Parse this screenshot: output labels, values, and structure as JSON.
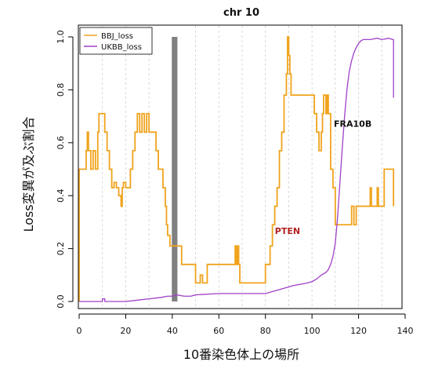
{
  "chart_data": {
    "type": "line",
    "title": "chr 10",
    "xlabel": "10番染色体上の場所",
    "ylabel": "Loss変異が及ぶ割合",
    "xlim": [
      0,
      140
    ],
    "ylim": [
      0,
      1
    ],
    "x_ticks": [
      0,
      20,
      40,
      60,
      80,
      100,
      120,
      140
    ],
    "y_ticks": [
      0.0,
      0.2,
      0.4,
      0.6,
      0.8,
      1.0
    ],
    "x_tick_labels": [
      "0",
      "20",
      "40",
      "60",
      "80",
      "100",
      "120",
      "140"
    ],
    "y_tick_labels": [
      "0.0",
      "0.2",
      "0.4",
      "0.6",
      "0.8",
      "1.0"
    ],
    "vertical_guides": [
      10,
      20,
      30,
      50,
      60,
      70,
      80,
      90,
      100,
      110,
      120,
      130
    ],
    "highlight_band": {
      "x0": 39.8,
      "x1": 42.2
    },
    "legend": {
      "placement": "top-left",
      "entries": [
        "BBJ_loss",
        "UKBB_loss"
      ]
    },
    "annotations": [
      {
        "text": "PTEN",
        "x": 89.5,
        "y": 0.255,
        "color": "#b22222"
      },
      {
        "text": "FRA10B",
        "x": 117.5,
        "y": 0.66,
        "color": "#111111"
      }
    ],
    "series": [
      {
        "name": "BBJ_loss",
        "color": "#f0a31c",
        "step": true,
        "points": [
          [
            0,
            0
          ],
          [
            0,
            0.5
          ],
          [
            3,
            0.5
          ],
          [
            3,
            0.57
          ],
          [
            3.5,
            0.57
          ],
          [
            3.5,
            0.64
          ],
          [
            4,
            0.64
          ],
          [
            4,
            0.57
          ],
          [
            5,
            0.57
          ],
          [
            5,
            0.5
          ],
          [
            6,
            0.5
          ],
          [
            6,
            0.57
          ],
          [
            7,
            0.57
          ],
          [
            7,
            0.5
          ],
          [
            8,
            0.5
          ],
          [
            8,
            0.64
          ],
          [
            8.5,
            0.64
          ],
          [
            8.5,
            0.71
          ],
          [
            11,
            0.71
          ],
          [
            11,
            0.64
          ],
          [
            12,
            0.64
          ],
          [
            12,
            0.57
          ],
          [
            13,
            0.57
          ],
          [
            13,
            0.5
          ],
          [
            14,
            0.5
          ],
          [
            14,
            0.43
          ],
          [
            15,
            0.43
          ],
          [
            15,
            0.45
          ],
          [
            16,
            0.45
          ],
          [
            16,
            0.43
          ],
          [
            17,
            0.43
          ],
          [
            17,
            0.4
          ],
          [
            18,
            0.4
          ],
          [
            18,
            0.36
          ],
          [
            18.5,
            0.36
          ],
          [
            18.5,
            0.43
          ],
          [
            19,
            0.43
          ],
          [
            19,
            0.45
          ],
          [
            20,
            0.45
          ],
          [
            20,
            0.43
          ],
          [
            22,
            0.43
          ],
          [
            22,
            0.5
          ],
          [
            23,
            0.5
          ],
          [
            23,
            0.57
          ],
          [
            24,
            0.57
          ],
          [
            24,
            0.64
          ],
          [
            25,
            0.64
          ],
          [
            25,
            0.71
          ],
          [
            26,
            0.71
          ],
          [
            26,
            0.64
          ],
          [
            27,
            0.64
          ],
          [
            27,
            0.71
          ],
          [
            28,
            0.71
          ],
          [
            28,
            0.64
          ],
          [
            29,
            0.64
          ],
          [
            29,
            0.71
          ],
          [
            30,
            0.71
          ],
          [
            30,
            0.64
          ],
          [
            33,
            0.64
          ],
          [
            33,
            0.57
          ],
          [
            34,
            0.57
          ],
          [
            34,
            0.5
          ],
          [
            36,
            0.5
          ],
          [
            36,
            0.43
          ],
          [
            37,
            0.43
          ],
          [
            37,
            0.36
          ],
          [
            37.5,
            0.36
          ],
          [
            37.5,
            0.29
          ],
          [
            38,
            0.29
          ],
          [
            38,
            0.25
          ],
          [
            39,
            0.25
          ],
          [
            39,
            0.21
          ],
          [
            44,
            0.21
          ],
          [
            44,
            0.14
          ],
          [
            50,
            0.14
          ],
          [
            50,
            0.07
          ],
          [
            52,
            0.07
          ],
          [
            52,
            0.1
          ],
          [
            53,
            0.1
          ],
          [
            53,
            0.07
          ],
          [
            55,
            0.07
          ],
          [
            55,
            0.14
          ],
          [
            67,
            0.14
          ],
          [
            67,
            0.21
          ],
          [
            67.5,
            0.21
          ],
          [
            67.5,
            0.14
          ],
          [
            68,
            0.14
          ],
          [
            68,
            0.21
          ],
          [
            68.5,
            0.21
          ],
          [
            68.5,
            0.14
          ],
          [
            69,
            0.14
          ],
          [
            69,
            0.07
          ],
          [
            80,
            0.07
          ],
          [
            80,
            0.14
          ],
          [
            82,
            0.14
          ],
          [
            82,
            0.21
          ],
          [
            83,
            0.21
          ],
          [
            83,
            0.29
          ],
          [
            84,
            0.29
          ],
          [
            84,
            0.36
          ],
          [
            85,
            0.36
          ],
          [
            85,
            0.43
          ],
          [
            86,
            0.43
          ],
          [
            86,
            0.57
          ],
          [
            87,
            0.57
          ],
          [
            87,
            0.64
          ],
          [
            88,
            0.64
          ],
          [
            88,
            0.78
          ],
          [
            89,
            0.78
          ],
          [
            89,
            0.86
          ],
          [
            89.5,
            0.86
          ],
          [
            89.5,
            1.0
          ],
          [
            90,
            1.0
          ],
          [
            90,
            0.93
          ],
          [
            90.5,
            0.93
          ],
          [
            90.5,
            0.86
          ],
          [
            91,
            0.86
          ],
          [
            91,
            0.78
          ],
          [
            101,
            0.78
          ],
          [
            101,
            0.71
          ],
          [
            102,
            0.71
          ],
          [
            102,
            0.64
          ],
          [
            103,
            0.64
          ],
          [
            103,
            0.57
          ],
          [
            104,
            0.57
          ],
          [
            104,
            0.64
          ],
          [
            104.5,
            0.64
          ],
          [
            104.5,
            0.71
          ],
          [
            105,
            0.71
          ],
          [
            105,
            0.78
          ],
          [
            106,
            0.78
          ],
          [
            106,
            0.71
          ],
          [
            106.5,
            0.71
          ],
          [
            106.5,
            0.78
          ],
          [
            107,
            0.78
          ],
          [
            107,
            0.71
          ],
          [
            108,
            0.71
          ],
          [
            108,
            0.5
          ],
          [
            109,
            0.5
          ],
          [
            109,
            0.43
          ],
          [
            110,
            0.43
          ],
          [
            110,
            0.29
          ],
          [
            117,
            0.29
          ],
          [
            117,
            0.36
          ],
          [
            118,
            0.36
          ],
          [
            118,
            0.29
          ],
          [
            119,
            0.29
          ],
          [
            119,
            0.36
          ],
          [
            125,
            0.36
          ],
          [
            125,
            0.43
          ],
          [
            125.5,
            0.43
          ],
          [
            125.5,
            0.36
          ],
          [
            128,
            0.36
          ],
          [
            128,
            0.43
          ],
          [
            128.5,
            0.43
          ],
          [
            128.5,
            0.36
          ],
          [
            131,
            0.36
          ],
          [
            131,
            0.5
          ],
          [
            135,
            0.5
          ],
          [
            135,
            0.36
          ]
        ]
      },
      {
        "name": "UKBB_loss",
        "color": "#a040c8",
        "step": false,
        "points": [
          [
            0,
            0.0
          ],
          [
            10,
            0.0
          ],
          [
            10,
            0.01
          ],
          [
            11,
            0.01
          ],
          [
            11,
            0.0
          ],
          [
            20,
            0.0
          ],
          [
            25,
            0.005
          ],
          [
            30,
            0.01
          ],
          [
            35,
            0.015
          ],
          [
            38,
            0.02
          ],
          [
            40,
            0.02
          ],
          [
            42,
            0.025
          ],
          [
            45,
            0.02
          ],
          [
            48,
            0.02
          ],
          [
            50,
            0.025
          ],
          [
            60,
            0.03
          ],
          [
            70,
            0.03
          ],
          [
            75,
            0.03
          ],
          [
            80,
            0.03
          ],
          [
            82,
            0.035
          ],
          [
            84,
            0.04
          ],
          [
            86,
            0.045
          ],
          [
            88,
            0.05
          ],
          [
            90,
            0.055
          ],
          [
            92,
            0.06
          ],
          [
            95,
            0.065
          ],
          [
            98,
            0.07
          ],
          [
            100,
            0.075
          ],
          [
            102,
            0.085
          ],
          [
            104,
            0.1
          ],
          [
            106,
            0.11
          ],
          [
            107,
            0.12
          ],
          [
            108,
            0.14
          ],
          [
            109,
            0.17
          ],
          [
            110,
            0.22
          ],
          [
            111,
            0.32
          ],
          [
            112,
            0.45
          ],
          [
            113,
            0.58
          ],
          [
            114,
            0.7
          ],
          [
            115,
            0.8
          ],
          [
            116,
            0.87
          ],
          [
            117,
            0.91
          ],
          [
            118,
            0.94
          ],
          [
            119,
            0.96
          ],
          [
            120,
            0.975
          ],
          [
            121,
            0.985
          ],
          [
            122,
            0.99
          ],
          [
            125,
            0.99
          ],
          [
            128,
            0.995
          ],
          [
            130,
            0.99
          ],
          [
            133,
            0.995
          ],
          [
            134.5,
            0.99
          ],
          [
            135,
            0.99
          ],
          [
            135,
            0.77
          ]
        ]
      }
    ]
  }
}
